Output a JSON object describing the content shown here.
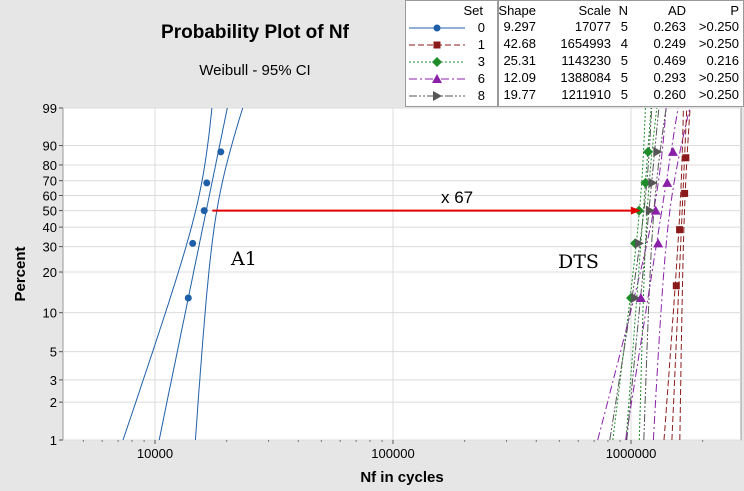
{
  "chart_data": {
    "type": "scatter",
    "title": "Probability Plot of Nf",
    "subtitle": "Weibull - 95% CI",
    "xlabel": "Nf in cycles",
    "ylabel": "Percent",
    "x_scale": "log",
    "y_scale": "weibull",
    "xlim": [
      4000,
      3000000
    ],
    "ylim": [
      1,
      99
    ],
    "x_ticks": [
      10000,
      100000,
      1000000
    ],
    "x_tick_labels": [
      "10000",
      "100000",
      "1000000"
    ],
    "y_ticks": [
      1,
      2,
      3,
      5,
      10,
      20,
      30,
      40,
      50,
      60,
      70,
      80,
      90,
      99
    ],
    "y_tick_labels": [
      "1",
      "2",
      "3",
      "5",
      "10",
      "20",
      "30",
      "40",
      "50",
      "60",
      "70",
      "80",
      "90",
      "99"
    ],
    "grid": true,
    "annotations": [
      {
        "text": "A1",
        "x": 18500,
        "y": 25
      },
      {
        "text": "DTS",
        "x": 700000,
        "y": 24
      },
      {
        "text": "x 67",
        "x": 155000,
        "y": 55
      }
    ],
    "arrow": {
      "from": [
        17077,
        50
      ],
      "to": [
        1143230,
        50
      ],
      "color": "#e00000"
    },
    "legend": {
      "title": "Set",
      "headers": [
        "Shape",
        "Scale",
        "N",
        "AD",
        "P"
      ],
      "rows": [
        {
          "set": "0",
          "shape": "9.297",
          "scale": "17077",
          "n": "5",
          "ad": "0.263",
          "p": ">0.250"
        },
        {
          "set": "1",
          "shape": "42.68",
          "scale": "1654993",
          "n": "4",
          "ad": "0.249",
          "p": ">0.250"
        },
        {
          "set": "3",
          "shape": "25.31",
          "scale": "1143230",
          "n": "5",
          "ad": "0.469",
          "p": "0.216"
        },
        {
          "set": "6",
          "shape": "12.09",
          "scale": "1388084",
          "n": "5",
          "ad": "0.293",
          "p": ">0.250"
        },
        {
          "set": "8",
          "shape": "19.77",
          "scale": "1211910",
          "n": "5",
          "ad": "0.260",
          "p": ">0.250"
        }
      ]
    },
    "series": [
      {
        "name": "0",
        "color": "#1f5fa8",
        "marker": "circle",
        "dash": "solid",
        "shape": 9.297,
        "scale": 17077,
        "points": [
          {
            "x": 13800,
            "y": 12.9
          },
          {
            "x": 14400,
            "y": 31.5
          },
          {
            "x": 16100,
            "y": 50
          },
          {
            "x": 16500,
            "y": 68.5
          },
          {
            "x": 18900,
            "y": 87.1
          }
        ]
      },
      {
        "name": "1",
        "color": "#8b1a1a",
        "marker": "square",
        "dash": "6,3",
        "shape": 42.68,
        "scale": 1654993,
        "points": [
          {
            "x": 1550000,
            "y": 15.9
          },
          {
            "x": 1600000,
            "y": 38.6
          },
          {
            "x": 1680000,
            "y": 61.4
          },
          {
            "x": 1700000,
            "y": 84.1
          }
        ]
      },
      {
        "name": "3",
        "color": "#1e8c2a",
        "marker": "diamond",
        "dash": "2,2",
        "shape": 25.31,
        "scale": 1143230,
        "points": [
          {
            "x": 1000000,
            "y": 12.9
          },
          {
            "x": 1040000,
            "y": 31.5
          },
          {
            "x": 1080000,
            "y": 50
          },
          {
            "x": 1150000,
            "y": 68.5
          },
          {
            "x": 1180000,
            "y": 87.1
          }
        ]
      },
      {
        "name": "6",
        "color": "#8a1fa8",
        "marker": "triangle-up",
        "dash": "8,3,2,3",
        "shape": 12.09,
        "scale": 1388084,
        "points": [
          {
            "x": 1100000,
            "y": 12.9
          },
          {
            "x": 1300000,
            "y": 31.5
          },
          {
            "x": 1270000,
            "y": 50
          },
          {
            "x": 1420000,
            "y": 68.5
          },
          {
            "x": 1500000,
            "y": 87.1
          }
        ]
      },
      {
        "name": "8",
        "color": "#555555",
        "marker": "triangle-right",
        "dash": "8,2,2,2,2,2",
        "shape": 19.77,
        "scale": 1211910,
        "points": [
          {
            "x": 1040000,
            "y": 12.9
          },
          {
            "x": 1080000,
            "y": 31.5
          },
          {
            "x": 1200000,
            "y": 50
          },
          {
            "x": 1230000,
            "y": 68.5
          },
          {
            "x": 1290000,
            "y": 87.1
          }
        ]
      }
    ]
  }
}
